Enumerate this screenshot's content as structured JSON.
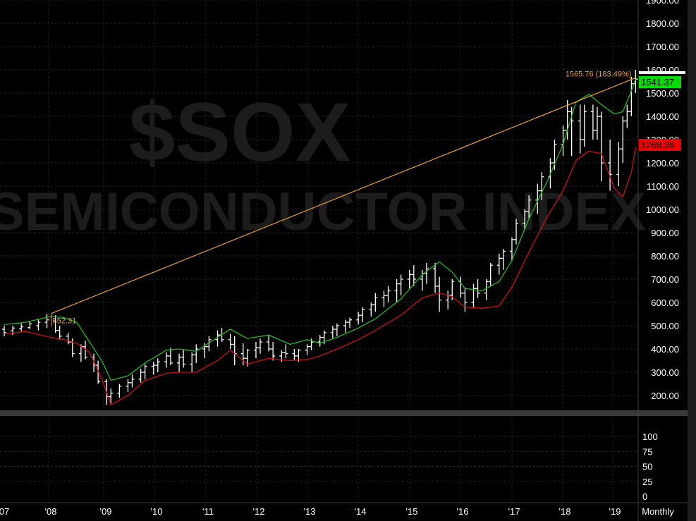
{
  "chart_data": {
    "type": "ohlc",
    "watermark": {
      "symbol": "$SOX",
      "name": "SEMICONDUCTOR INDEX"
    },
    "price_ylim": [
      150,
      1900
    ],
    "price_yticks": [
      "200.00",
      "300.00",
      "400.00",
      "500.00",
      "600.00",
      "700.00",
      "800.00",
      "900.00",
      "1000.00",
      "1100.00",
      "1200.00",
      "1300.00",
      "1400.00",
      "1500.00",
      "1600.00",
      "1700.00",
      "1800.00",
      "1900.00"
    ],
    "lower_pane_yticks": [
      "0",
      "25",
      "50",
      "75",
      "100"
    ],
    "x_tick_labels": [
      "07",
      "'08",
      "'09",
      "'10",
      "'11",
      "'12",
      "'13",
      "'14",
      "'15",
      "'16",
      "'17",
      "'18",
      "'19",
      "Monthly"
    ],
    "trendline": {
      "color": "#f0a030",
      "start": {
        "date": "2007-12",
        "value": 552.31,
        "label": "552.31"
      },
      "end": {
        "date": "2019-05",
        "value": 1565.76,
        "label": "1565.76 (183.49%)"
      }
    },
    "upper_band_badge": {
      "label": "1541.37",
      "color": "#00dd00"
    },
    "lower_band_badge": {
      "label": "1268.36",
      "color": "#ee0000"
    },
    "upper_band": {
      "color": "#22bb22",
      "points": [
        [
          "2007-01",
          505
        ],
        [
          "2007-06",
          515
        ],
        [
          "2007-12",
          540
        ],
        [
          "2008-03",
          535
        ],
        [
          "2008-06",
          515
        ],
        [
          "2008-09",
          430
        ],
        [
          "2008-12",
          345
        ],
        [
          "2009-02",
          265
        ],
        [
          "2009-06",
          285
        ],
        [
          "2009-10",
          340
        ],
        [
          "2010-03",
          395
        ],
        [
          "2010-06",
          400
        ],
        [
          "2010-10",
          390
        ],
        [
          "2011-03",
          450
        ],
        [
          "2011-06",
          485
        ],
        [
          "2011-10",
          445
        ],
        [
          "2012-03",
          460
        ],
        [
          "2012-08",
          420
        ],
        [
          "2012-12",
          440
        ],
        [
          "2013-03",
          425
        ],
        [
          "2013-07",
          450
        ],
        [
          "2013-12",
          490
        ],
        [
          "2014-04",
          530
        ],
        [
          "2014-10",
          615
        ],
        [
          "2015-03",
          720
        ],
        [
          "2015-07",
          775
        ],
        [
          "2015-10",
          730
        ],
        [
          "2016-01",
          660
        ],
        [
          "2016-05",
          650
        ],
        [
          "2016-09",
          690
        ],
        [
          "2016-12",
          780
        ],
        [
          "2017-04",
          960
        ],
        [
          "2017-08",
          1110
        ],
        [
          "2017-12",
          1280
        ],
        [
          "2018-03",
          1460
        ],
        [
          "2018-06",
          1495
        ],
        [
          "2018-09",
          1450
        ],
        [
          "2018-12",
          1410
        ],
        [
          "2019-02",
          1420
        ],
        [
          "2019-04",
          1510
        ],
        [
          "2019-05",
          1560
        ]
      ]
    },
    "lower_band": {
      "color": "#cc1111",
      "points": [
        [
          "2007-01",
          465
        ],
        [
          "2007-06",
          475
        ],
        [
          "2007-12",
          450
        ],
        [
          "2008-03",
          440
        ],
        [
          "2008-06",
          425
        ],
        [
          "2008-09",
          385
        ],
        [
          "2008-12",
          265
        ],
        [
          "2009-02",
          160
        ],
        [
          "2009-06",
          200
        ],
        [
          "2009-10",
          265
        ],
        [
          "2010-03",
          295
        ],
        [
          "2010-06",
          300
        ],
        [
          "2010-10",
          300
        ],
        [
          "2011-03",
          350
        ],
        [
          "2011-06",
          395
        ],
        [
          "2011-10",
          335
        ],
        [
          "2012-03",
          360
        ],
        [
          "2012-08",
          350
        ],
        [
          "2012-12",
          355
        ],
        [
          "2013-03",
          370
        ],
        [
          "2013-07",
          400
        ],
        [
          "2013-12",
          440
        ],
        [
          "2014-04",
          480
        ],
        [
          "2014-10",
          545
        ],
        [
          "2015-03",
          620
        ],
        [
          "2015-07",
          640
        ],
        [
          "2015-10",
          625
        ],
        [
          "2016-01",
          580
        ],
        [
          "2016-05",
          575
        ],
        [
          "2016-09",
          585
        ],
        [
          "2016-12",
          665
        ],
        [
          "2017-04",
          815
        ],
        [
          "2017-08",
          960
        ],
        [
          "2017-12",
          1080
        ],
        [
          "2018-03",
          1210
        ],
        [
          "2018-06",
          1250
        ],
        [
          "2018-09",
          1240
        ],
        [
          "2018-12",
          1090
        ],
        [
          "2019-02",
          1055
        ],
        [
          "2019-04",
          1160
        ],
        [
          "2019-05",
          1268
        ]
      ]
    },
    "ohlc": [
      [
        "2007-01",
        485,
        500,
        455,
        470
      ],
      [
        "2007-03",
        478,
        500,
        460,
        490
      ],
      [
        "2007-05",
        488,
        510,
        475,
        495
      ],
      [
        "2007-07",
        492,
        520,
        485,
        508
      ],
      [
        "2007-09",
        500,
        530,
        480,
        515
      ],
      [
        "2007-11",
        515,
        552,
        490,
        525
      ],
      [
        "2008-01",
        520,
        545,
        470,
        480
      ],
      [
        "2008-02",
        480,
        500,
        440,
        455
      ],
      [
        "2008-04",
        455,
        470,
        420,
        430
      ],
      [
        "2008-05",
        430,
        445,
        365,
        380
      ],
      [
        "2008-07",
        380,
        420,
        345,
        410
      ],
      [
        "2008-08",
        410,
        435,
        355,
        365
      ],
      [
        "2008-10",
        365,
        380,
        300,
        330
      ],
      [
        "2008-11",
        330,
        350,
        250,
        260
      ],
      [
        "2009-01",
        260,
        270,
        160,
        195
      ],
      [
        "2009-02",
        195,
        230,
        165,
        210
      ],
      [
        "2009-04",
        210,
        250,
        190,
        240
      ],
      [
        "2009-06",
        240,
        270,
        215,
        255
      ],
      [
        "2009-07",
        255,
        290,
        235,
        270
      ],
      [
        "2009-09",
        270,
        315,
        255,
        300
      ],
      [
        "2009-10",
        300,
        335,
        270,
        325
      ],
      [
        "2009-12",
        325,
        345,
        290,
        330
      ],
      [
        "2010-01",
        330,
        360,
        300,
        345
      ],
      [
        "2010-03",
        345,
        385,
        320,
        370
      ],
      [
        "2010-04",
        370,
        405,
        330,
        340
      ],
      [
        "2010-06",
        340,
        380,
        300,
        365
      ],
      [
        "2010-07",
        365,
        395,
        320,
        335
      ],
      [
        "2010-09",
        335,
        385,
        300,
        375
      ],
      [
        "2010-10",
        375,
        420,
        340,
        400
      ],
      [
        "2010-12",
        400,
        425,
        360,
        410
      ],
      [
        "2011-01",
        410,
        455,
        390,
        440
      ],
      [
        "2011-03",
        440,
        480,
        410,
        460
      ],
      [
        "2011-04",
        460,
        490,
        430,
        440
      ],
      [
        "2011-06",
        440,
        465,
        400,
        420
      ],
      [
        "2011-07",
        420,
        455,
        330,
        380
      ],
      [
        "2011-09",
        380,
        425,
        330,
        360
      ],
      [
        "2011-10",
        360,
        400,
        325,
        395
      ],
      [
        "2011-12",
        395,
        430,
        360,
        405
      ],
      [
        "2012-01",
        405,
        445,
        380,
        430
      ],
      [
        "2012-03",
        430,
        460,
        390,
        400
      ],
      [
        "2012-04",
        400,
        430,
        350,
        370
      ],
      [
        "2012-06",
        370,
        395,
        345,
        385
      ],
      [
        "2012-07",
        385,
        420,
        360,
        380
      ],
      [
        "2012-09",
        380,
        400,
        350,
        370
      ],
      [
        "2012-10",
        370,
        400,
        345,
        395
      ],
      [
        "2012-12",
        395,
        420,
        375,
        410
      ],
      [
        "2013-01",
        410,
        445,
        395,
        430
      ],
      [
        "2013-03",
        430,
        460,
        410,
        450
      ],
      [
        "2013-04",
        450,
        480,
        420,
        470
      ],
      [
        "2013-06",
        470,
        500,
        445,
        485
      ],
      [
        "2013-07",
        485,
        510,
        455,
        500
      ],
      [
        "2013-09",
        500,
        525,
        470,
        515
      ],
      [
        "2013-10",
        515,
        535,
        490,
        525
      ],
      [
        "2013-12",
        525,
        560,
        505,
        545
      ],
      [
        "2014-01",
        545,
        580,
        515,
        570
      ],
      [
        "2014-03",
        570,
        600,
        540,
        590
      ],
      [
        "2014-04",
        590,
        640,
        560,
        620
      ],
      [
        "2014-06",
        620,
        650,
        580,
        630
      ],
      [
        "2014-07",
        630,
        670,
        600,
        650
      ],
      [
        "2014-09",
        650,
        700,
        600,
        680
      ],
      [
        "2014-10",
        680,
        720,
        630,
        700
      ],
      [
        "2014-12",
        700,
        740,
        660,
        720
      ],
      [
        "2015-01",
        720,
        760,
        670,
        700
      ],
      [
        "2015-03",
        700,
        740,
        650,
        725
      ],
      [
        "2015-04",
        725,
        770,
        680,
        745
      ],
      [
        "2015-06",
        745,
        770,
        640,
        670
      ],
      [
        "2015-07",
        670,
        710,
        560,
        610
      ],
      [
        "2015-09",
        610,
        650,
        570,
        630
      ],
      [
        "2015-10",
        630,
        700,
        610,
        690
      ],
      [
        "2015-12",
        690,
        710,
        620,
        640
      ],
      [
        "2016-01",
        640,
        660,
        560,
        600
      ],
      [
        "2016-03",
        600,
        680,
        580,
        660
      ],
      [
        "2016-04",
        660,
        700,
        620,
        640
      ],
      [
        "2016-06",
        640,
        700,
        610,
        690
      ],
      [
        "2016-07",
        690,
        770,
        670,
        760
      ],
      [
        "2016-09",
        760,
        810,
        720,
        790
      ],
      [
        "2016-10",
        790,
        830,
        740,
        820
      ],
      [
        "2016-12",
        820,
        880,
        780,
        870
      ],
      [
        "2017-01",
        870,
        960,
        850,
        940
      ],
      [
        "2017-03",
        940,
        1000,
        910,
        990
      ],
      [
        "2017-04",
        990,
        1060,
        960,
        1040
      ],
      [
        "2017-06",
        1040,
        1110,
        980,
        1080
      ],
      [
        "2017-07",
        1080,
        1160,
        1040,
        1140
      ],
      [
        "2017-09",
        1140,
        1220,
        1090,
        1200
      ],
      [
        "2017-10",
        1200,
        1300,
        1170,
        1280
      ],
      [
        "2017-12",
        1280,
        1360,
        1230,
        1340
      ],
      [
        "2018-01",
        1340,
        1470,
        1300,
        1420
      ],
      [
        "2018-02",
        1420,
        1440,
        1230,
        1380
      ],
      [
        "2018-04",
        1380,
        1450,
        1240,
        1300
      ],
      [
        "2018-05",
        1300,
        1450,
        1270,
        1420
      ],
      [
        "2018-07",
        1420,
        1450,
        1300,
        1340
      ],
      [
        "2018-08",
        1340,
        1440,
        1300,
        1400
      ],
      [
        "2018-09",
        1400,
        1420,
        1120,
        1200
      ],
      [
        "2018-11",
        1200,
        1300,
        1080,
        1150
      ],
      [
        "2019-01",
        1150,
        1290,
        1100,
        1260
      ],
      [
        "2019-02",
        1260,
        1400,
        1200,
        1380
      ],
      [
        "2019-03",
        1380,
        1450,
        1350,
        1420
      ],
      [
        "2019-04",
        1420,
        1570,
        1400,
        1540
      ],
      [
        "2019-05",
        1540,
        1600,
        1500,
        1560
      ]
    ]
  }
}
